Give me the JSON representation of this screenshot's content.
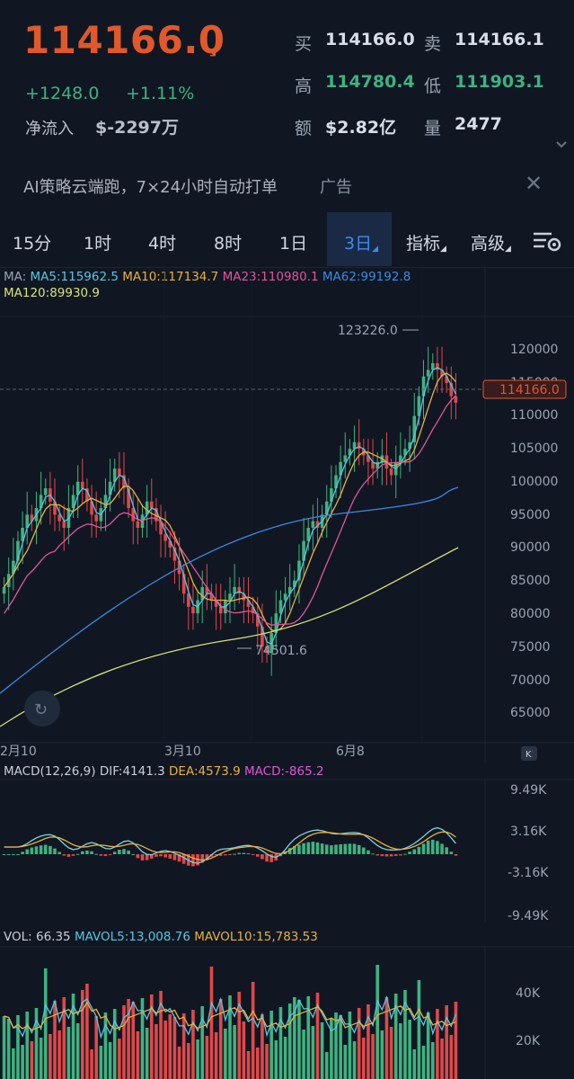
{
  "header": {
    "last_price": "114166.0",
    "change": "+1248.0",
    "change_pct": "+1.11%",
    "net_inflow_label": "净流入",
    "net_inflow_value": "$-2297万",
    "buy_label": "买",
    "buy_value": "114166.0",
    "sell_label": "卖",
    "sell_value": "114166.1",
    "high_label": "高",
    "high_value": "114780.4",
    "low_label": "低",
    "low_value": "111903.1",
    "amount_label": "额",
    "amount_value": "$2.82亿",
    "volume_label": "量",
    "volume_value": "2477",
    "colors": {
      "down": "#e0582b",
      "up": "#3fb27f"
    }
  },
  "ad": {
    "text": "AI策略云端跑，7×24小时自动打单",
    "tag": "广告"
  },
  "tabs": [
    {
      "label": "15分"
    },
    {
      "label": "1时"
    },
    {
      "label": "4时"
    },
    {
      "label": "8时"
    },
    {
      "label": "1日"
    },
    {
      "label": "3日"
    },
    {
      "label": "指标"
    },
    {
      "label": "高级"
    }
  ],
  "active_tab": "3日",
  "main_chart": {
    "ma_prefix": "MA:",
    "ma5": "MA5:115962.5",
    "ma10": "MA10:117134.7",
    "ma23": "MA23:110980.1",
    "ma62": "MA62:99192.8",
    "ma120": "MA120:89930.9",
    "ma_colors": {
      "ma5": "#59c6e0",
      "ma10": "#e8b13c",
      "ma23": "#e0559a",
      "ma62": "#3e8ae0",
      "ma120": "#d9e27a"
    },
    "y_ticks": [
      "120000",
      "115000",
      "110000",
      "105000",
      "100000",
      "95000",
      "90000",
      "85000",
      "80000",
      "75000",
      "70000",
      "65000"
    ],
    "x_ticks": [
      "2月10",
      "3月10",
      "6月8"
    ],
    "high_marker": "123226.0",
    "low_marker": "74501.6",
    "current_tag": "114166.0"
  },
  "macd": {
    "title": "MACD(12,26,9)",
    "dif": "DIF:4141.3",
    "dea": "DEA:4573.9",
    "macd": "MACD:-865.2",
    "y_ticks": [
      "9.49K",
      "3.16K",
      "-3.16K",
      "-9.49K"
    ]
  },
  "volume": {
    "vol": "VOL: 66.35",
    "mavol5": "MAVOL5:13,008.76",
    "mavol10": "MAVOL10:15,783.53",
    "y_ticks": [
      "40K",
      "20K"
    ]
  }
}
